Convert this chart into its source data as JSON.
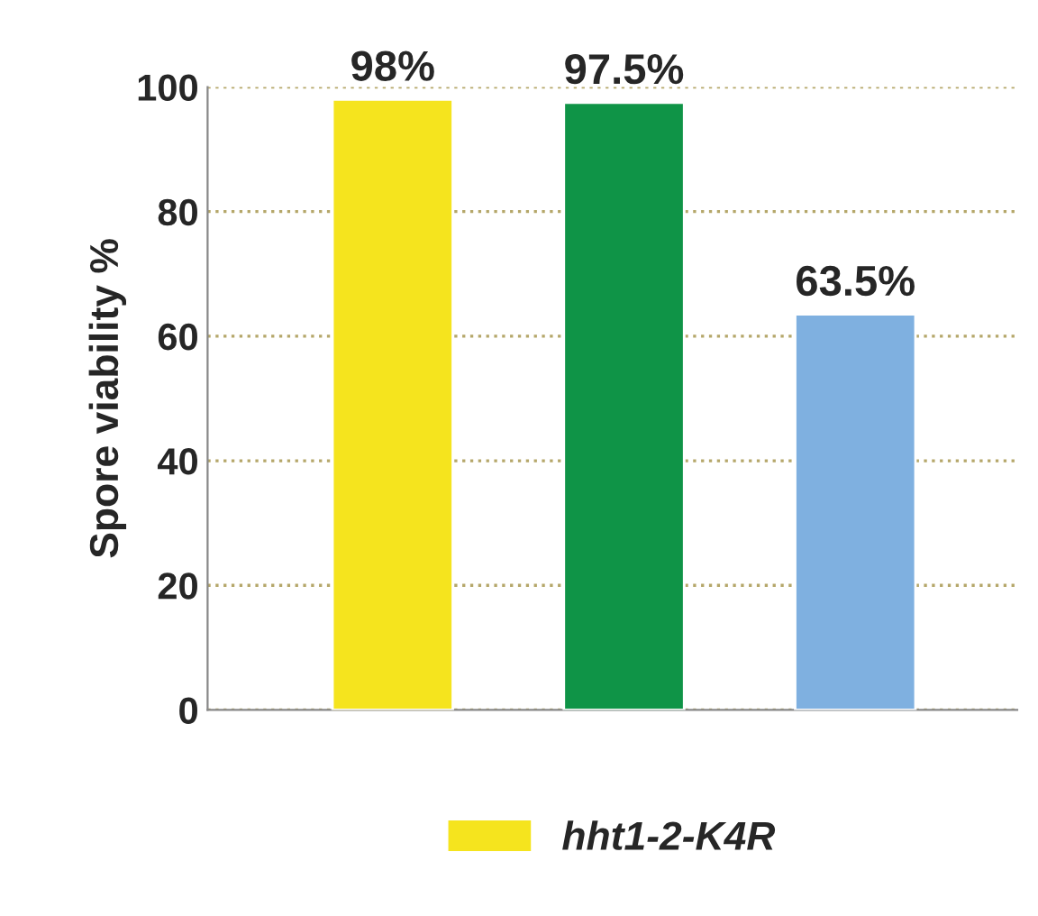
{
  "chart_data": {
    "type": "bar",
    "ylabel": "Spore viability %",
    "categories": [
      null,
      null,
      null
    ],
    "series": [
      {
        "name": "hht1-2-K4R",
        "color": "#f5e41e",
        "values": [
          98,
          null,
          null
        ],
        "value_labels": [
          "98%",
          null,
          null
        ]
      },
      {
        "color": "#0f9447",
        "values": [
          null,
          97.5,
          null
        ],
        "value_labels": [
          null,
          "97.5%",
          null
        ]
      },
      {
        "color": "#7fb0e0",
        "values": [
          null,
          null,
          63.5
        ],
        "value_labels": [
          null,
          null,
          "63.5%"
        ]
      }
    ],
    "ylim": [
      0,
      100
    ],
    "yticks": [
      0,
      20,
      40,
      60,
      80,
      100
    ],
    "grid": "y",
    "legend": "bottom"
  }
}
